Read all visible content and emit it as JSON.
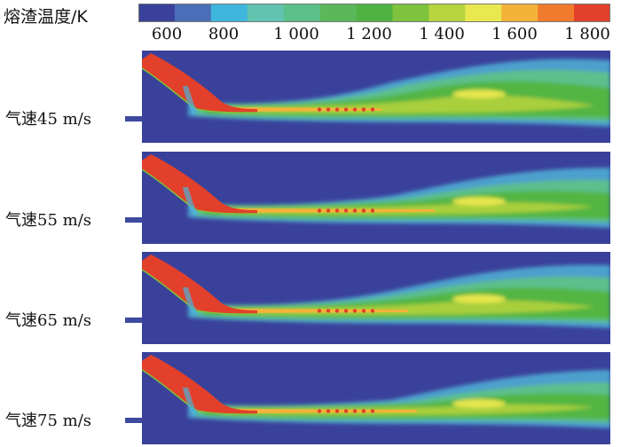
{
  "colorbar": {
    "title": "熔渣温度/K",
    "tick_labels": [
      "600",
      "800",
      "1 000",
      "1 200",
      "1 400",
      "1 600",
      "1 800"
    ],
    "colors": [
      "#3a419a",
      "#4a6fb8",
      "#3fb6dd",
      "#62c3b0",
      "#5cc08a",
      "#5bb85a",
      "#4fb341",
      "#7ec23d",
      "#b7d43f",
      "#e9e84f",
      "#f3b33a",
      "#f07b2c",
      "#e2402b"
    ]
  },
  "panels": [
    {
      "label": "气速45 m/s"
    },
    {
      "label": "气速55 m/s"
    },
    {
      "label": "气速65 m/s"
    },
    {
      "label": "气速75 m/s"
    }
  ],
  "chart_data": {
    "type": "heatmap",
    "title": "",
    "colorbar_label": "熔渣温度/K",
    "colorbar_ticks": [
      600,
      800,
      1000,
      1200,
      1400,
      1600,
      1800
    ],
    "series": [
      {
        "name": "气速45 m/s",
        "gas_velocity": 45
      },
      {
        "name": "气速55 m/s",
        "gas_velocity": 55
      },
      {
        "name": "气速65 m/s",
        "gas_velocity": 65
      },
      {
        "name": "气速75 m/s",
        "gas_velocity": 75
      }
    ]
  }
}
